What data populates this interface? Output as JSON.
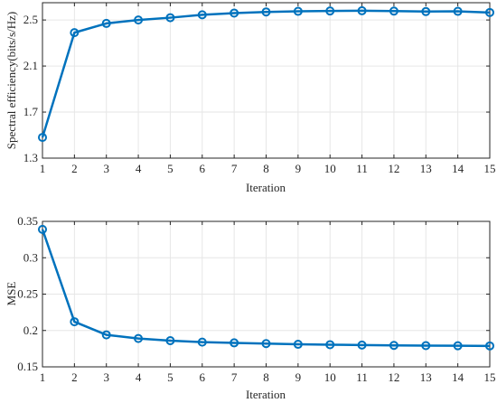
{
  "chart_data": [
    {
      "type": "line",
      "xlabel": "Iteration",
      "ylabel": "Spectral efficiency(bits/s/Hz)",
      "xlim": [
        1,
        15
      ],
      "ylim": [
        1.3,
        2.65
      ],
      "xticks": [
        1,
        2,
        3,
        4,
        5,
        6,
        7,
        8,
        9,
        10,
        11,
        12,
        13,
        14,
        15
      ],
      "yticks": [
        1.3,
        1.7,
        2.1,
        2.5
      ],
      "ytick_labels": [
        "1.3",
        "1.7",
        "2.1",
        "2.5"
      ],
      "grid": true,
      "x": [
        1,
        2,
        3,
        4,
        5,
        6,
        7,
        8,
        9,
        10,
        11,
        12,
        13,
        14,
        15
      ],
      "series": [
        {
          "values": [
            1.48,
            2.39,
            2.47,
            2.5,
            2.52,
            2.545,
            2.56,
            2.57,
            2.575,
            2.578,
            2.58,
            2.577,
            2.573,
            2.575,
            2.565
          ],
          "color": "#0072bd",
          "marker": "circle"
        }
      ]
    },
    {
      "type": "line",
      "xlabel": "Iteration",
      "ylabel": "MSE",
      "xlim": [
        1,
        15
      ],
      "ylim": [
        0.15,
        0.35
      ],
      "xticks": [
        1,
        2,
        3,
        4,
        5,
        6,
        7,
        8,
        9,
        10,
        11,
        12,
        13,
        14,
        15
      ],
      "yticks": [
        0.15,
        0.2,
        0.25,
        0.3,
        0.35
      ],
      "ytick_labels": [
        "0.15",
        "0.2",
        "0.25",
        "0.3",
        "0.35"
      ],
      "grid": true,
      "x": [
        1,
        2,
        3,
        4,
        5,
        6,
        7,
        8,
        9,
        10,
        11,
        12,
        13,
        14,
        15
      ],
      "series": [
        {
          "values": [
            0.339,
            0.212,
            0.194,
            0.189,
            0.186,
            0.184,
            0.183,
            0.182,
            0.181,
            0.1805,
            0.18,
            0.1795,
            0.1792,
            0.179,
            0.1788
          ],
          "color": "#0072bd",
          "marker": "circle"
        }
      ]
    }
  ]
}
